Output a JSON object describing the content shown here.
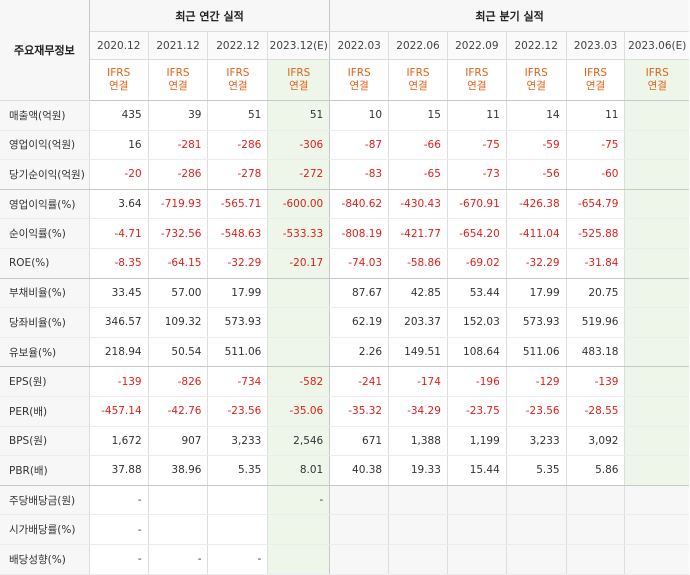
{
  "header": {
    "row_label": "주요재무정보",
    "annual_title": "최근 연간 실적",
    "quarterly_title": "최근 분기 실적"
  },
  "annual_periods": [
    "2020.12",
    "2021.12",
    "2022.12",
    "2023.12(E)"
  ],
  "quarter_periods": [
    "2022.03",
    "2022.06",
    "2022.09",
    "2022.12",
    "2023.03",
    "2023.06(E)"
  ],
  "ifrs": {
    "line1": "IFRS",
    "line2": "연결"
  },
  "rows": [
    {
      "label": "매출액(억원)",
      "annual": [
        "435",
        "39",
        "51",
        "51"
      ],
      "quarter": [
        "10",
        "15",
        "11",
        "14",
        "11",
        ""
      ]
    },
    {
      "label": "영업이익(억원)",
      "annual": [
        "16",
        "-281",
        "-286",
        "-306"
      ],
      "quarter": [
        "-87",
        "-66",
        "-75",
        "-59",
        "-75",
        ""
      ]
    },
    {
      "label": "당기순이익(억원)",
      "annual": [
        "-20",
        "-286",
        "-278",
        "-272"
      ],
      "quarter": [
        "-83",
        "-65",
        "-73",
        "-56",
        "-60",
        ""
      ]
    },
    {
      "label": "영업이익률(%)",
      "annual": [
        "3.64",
        "-719.93",
        "-565.71",
        "-600.00"
      ],
      "quarter": [
        "-840.62",
        "-430.43",
        "-670.91",
        "-426.38",
        "-654.79",
        ""
      ]
    },
    {
      "label": "순이익률(%)",
      "annual": [
        "-4.71",
        "-732.56",
        "-548.63",
        "-533.33"
      ],
      "quarter": [
        "-808.19",
        "-421.77",
        "-654.20",
        "-411.04",
        "-525.88",
        ""
      ]
    },
    {
      "label": "ROE(%)",
      "annual": [
        "-8.35",
        "-64.15",
        "-32.29",
        "-20.17"
      ],
      "quarter": [
        "-74.03",
        "-58.86",
        "-69.02",
        "-32.29",
        "-31.84",
        ""
      ]
    },
    {
      "label": "부채비율(%)",
      "annual": [
        "33.45",
        "57.00",
        "17.99",
        ""
      ],
      "quarter": [
        "87.67",
        "42.85",
        "53.44",
        "17.99",
        "20.75",
        ""
      ]
    },
    {
      "label": "당좌비율(%)",
      "annual": [
        "346.57",
        "109.32",
        "573.93",
        ""
      ],
      "quarter": [
        "62.19",
        "203.37",
        "152.03",
        "573.93",
        "519.96",
        ""
      ]
    },
    {
      "label": "유보율(%)",
      "annual": [
        "218.94",
        "50.54",
        "511.06",
        ""
      ],
      "quarter": [
        "2.26",
        "149.51",
        "108.64",
        "511.06",
        "483.18",
        ""
      ]
    },
    {
      "label": "EPS(원)",
      "annual": [
        "-139",
        "-826",
        "-734",
        "-582"
      ],
      "quarter": [
        "-241",
        "-174",
        "-196",
        "-129",
        "-139",
        ""
      ]
    },
    {
      "label": "PER(배)",
      "annual": [
        "-457.14",
        "-42.76",
        "-23.56",
        "-35.06"
      ],
      "quarter": [
        "-35.32",
        "-34.29",
        "-23.75",
        "-23.56",
        "-28.55",
        ""
      ]
    },
    {
      "label": "BPS(원)",
      "annual": [
        "1,672",
        "907",
        "3,233",
        "2,546"
      ],
      "quarter": [
        "671",
        "1,388",
        "1,199",
        "3,233",
        "3,092",
        ""
      ]
    },
    {
      "label": "PBR(배)",
      "annual": [
        "37.88",
        "38.96",
        "5.35",
        "8.01"
      ],
      "quarter": [
        "40.38",
        "19.33",
        "15.44",
        "5.35",
        "5.86",
        ""
      ]
    },
    {
      "label": "주당배당금(원)",
      "annual": [
        "-",
        "",
        "",
        "-"
      ],
      "quarter": [
        "",
        "",
        "",
        "",
        "",
        ""
      ]
    },
    {
      "label": "시가배당률(%)",
      "annual": [
        "-",
        "",
        "",
        ""
      ],
      "quarter": [
        "",
        "",
        "",
        "",
        "",
        ""
      ]
    },
    {
      "label": "배당성향(%)",
      "annual": [
        "-",
        "-",
        "-",
        ""
      ],
      "quarter": [
        "",
        "",
        "",
        "",
        "",
        ""
      ]
    }
  ],
  "colors": {
    "negative": "#e0201a",
    "ifrs": "#e0621a",
    "estimate_bg": "#eef6ea"
  }
}
